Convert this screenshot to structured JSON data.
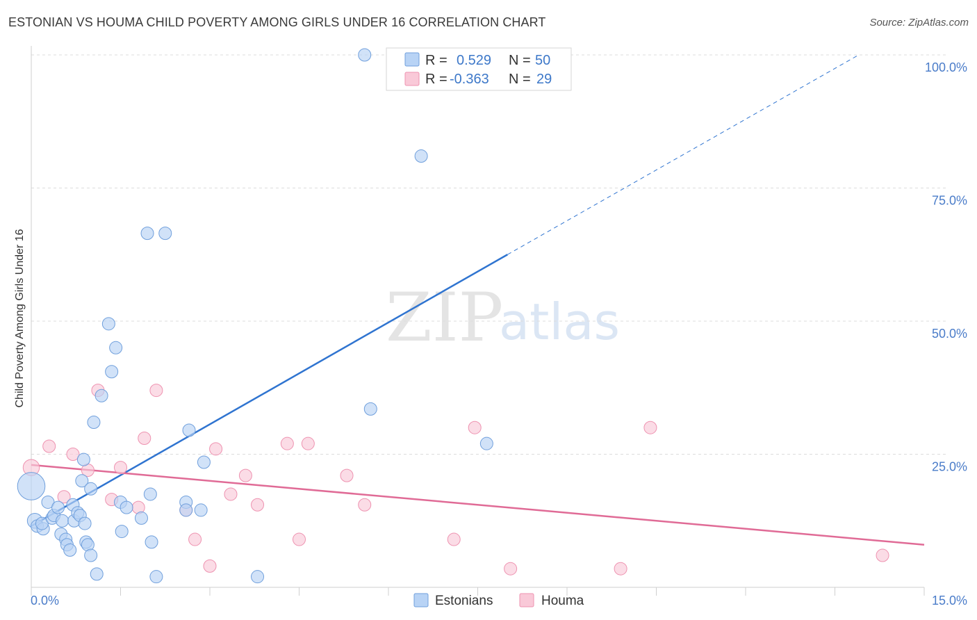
{
  "header": {
    "title": "ESTONIAN VS HOUMA CHILD POVERTY AMONG GIRLS UNDER 16 CORRELATION CHART",
    "source": "Source: ZipAtlas.com"
  },
  "watermark": {
    "zip": "ZIP",
    "atlas": "atlas"
  },
  "colors": {
    "estonians_fill": "#b8d3f5",
    "estonians_stroke": "#6f9fdc",
    "estonians_line": "#2f74d0",
    "houma_fill": "#f9c9d8",
    "houma_stroke": "#ee92b0",
    "houma_line": "#e06b96",
    "grid": "#dcdcdc",
    "tick_text": "#4a7cc9"
  },
  "legend": {
    "rows": [
      {
        "r_label": "R =",
        "r_value": "0.529",
        "n_label": "N =",
        "n_value": "50"
      },
      {
        "r_label": "R =",
        "r_value": "-0.363",
        "n_label": "N =",
        "n_value": "29"
      }
    ]
  },
  "chart_data": {
    "type": "scatter",
    "title": "ESTONIAN VS HOUMA CHILD POVERTY AMONG GIRLS UNDER 16 CORRELATION CHART",
    "xlabel": "",
    "ylabel": "Child Poverty Among Girls Under 16",
    "xlim": [
      0,
      15
    ],
    "ylim": [
      0,
      100
    ],
    "x_tick_labels": [
      "0.0%",
      "15.0%"
    ],
    "y_ticks": [
      25,
      50,
      75,
      100
    ],
    "y_tick_labels": [
      "25.0%",
      "50.0%",
      "75.0%",
      "100.0%"
    ],
    "grid": true,
    "legend_position": "top-center",
    "bottom_legend": [
      "Estonians",
      "Houma"
    ],
    "series": [
      {
        "name": "Estonians",
        "r": 0.529,
        "n": 50,
        "trend": {
          "x0": 0,
          "y0": 11.5,
          "x1": 8.0,
          "y1": 62.5,
          "dash_to_x": 13.9,
          "dash_to_y": 100
        },
        "points": [
          [
            0.0,
            19,
            2.2
          ],
          [
            0.06,
            12.5,
            1.2
          ],
          [
            0.1,
            11.5,
            1
          ],
          [
            0.2,
            11,
            1
          ],
          [
            0.18,
            12,
            1
          ],
          [
            0.28,
            16,
            1
          ],
          [
            0.35,
            13,
            1
          ],
          [
            0.38,
            13.5,
            1
          ],
          [
            0.45,
            15,
            1
          ],
          [
            0.5,
            10,
            1
          ],
          [
            0.52,
            12.5,
            1
          ],
          [
            0.58,
            9,
            1
          ],
          [
            0.6,
            8,
            1
          ],
          [
            0.65,
            7,
            1
          ],
          [
            0.7,
            15.5,
            1
          ],
          [
            0.72,
            12.5,
            1
          ],
          [
            0.78,
            14,
            1
          ],
          [
            0.82,
            13.5,
            1
          ],
          [
            0.85,
            20,
            1
          ],
          [
            0.9,
            12,
            1
          ],
          [
            0.88,
            24,
            1
          ],
          [
            0.92,
            8.5,
            1
          ],
          [
            0.95,
            8,
            1
          ],
          [
            1.0,
            6,
            1
          ],
          [
            1.0,
            18.5,
            1
          ],
          [
            1.05,
            31,
            1
          ],
          [
            1.1,
            2.5,
            1
          ],
          [
            1.18,
            36,
            1
          ],
          [
            1.3,
            49.5,
            1
          ],
          [
            1.35,
            40.5,
            1
          ],
          [
            1.42,
            45,
            1
          ],
          [
            1.5,
            16,
            1
          ],
          [
            1.52,
            10.5,
            1
          ],
          [
            1.6,
            15,
            1
          ],
          [
            1.85,
            13,
            1
          ],
          [
            1.95,
            66.5,
            1
          ],
          [
            2.0,
            17.5,
            1
          ],
          [
            2.02,
            8.5,
            1
          ],
          [
            2.1,
            2,
            1
          ],
          [
            2.25,
            66.5,
            1
          ],
          [
            2.6,
            16,
            1
          ],
          [
            2.6,
            14.5,
            1
          ],
          [
            2.65,
            29.5,
            1
          ],
          [
            2.85,
            14.5,
            1
          ],
          [
            2.9,
            23.5,
            1
          ],
          [
            3.8,
            2,
            1
          ],
          [
            5.6,
            100,
            1
          ],
          [
            5.7,
            33.5,
            1
          ],
          [
            6.55,
            81,
            1
          ],
          [
            7.65,
            27,
            1
          ]
        ]
      },
      {
        "name": "Houma",
        "r": -0.363,
        "n": 29,
        "trend": {
          "x0": 0,
          "y0": 23,
          "x1": 15.0,
          "y1": 8
        },
        "points": [
          [
            0.0,
            22.5,
            1.3
          ],
          [
            0.3,
            26.5,
            1
          ],
          [
            0.55,
            17,
            1
          ],
          [
            0.7,
            25,
            1
          ],
          [
            0.95,
            22,
            1
          ],
          [
            1.12,
            37,
            1
          ],
          [
            1.35,
            16.5,
            1
          ],
          [
            1.5,
            22.5,
            1
          ],
          [
            1.8,
            15,
            1
          ],
          [
            1.9,
            28,
            1
          ],
          [
            2.1,
            37,
            1
          ],
          [
            2.6,
            14.5,
            1
          ],
          [
            2.75,
            9,
            1
          ],
          [
            3.0,
            4,
            1
          ],
          [
            3.1,
            26,
            1
          ],
          [
            3.35,
            17.5,
            1
          ],
          [
            3.6,
            21,
            1
          ],
          [
            3.8,
            15.5,
            1
          ],
          [
            4.3,
            27,
            1
          ],
          [
            4.5,
            9,
            1
          ],
          [
            4.65,
            27,
            1
          ],
          [
            5.3,
            21,
            1
          ],
          [
            5.6,
            15.5,
            1
          ],
          [
            7.1,
            9,
            1
          ],
          [
            7.45,
            30,
            1
          ],
          [
            8.05,
            3.5,
            1
          ],
          [
            9.9,
            3.5,
            1
          ],
          [
            10.4,
            30,
            1
          ],
          [
            14.3,
            6,
            1
          ]
        ]
      }
    ]
  }
}
